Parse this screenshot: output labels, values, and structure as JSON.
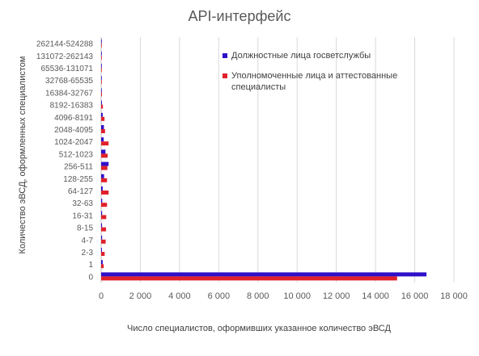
{
  "chart_data": {
    "type": "bar",
    "orientation": "horizontal",
    "title": "API-интерфейс",
    "xlabel": "Число специалистов, оформивших указанное количество эВСД",
    "ylabel": "Количество эВСД, оформленных специалистом",
    "xlim": [
      0,
      18000
    ],
    "x_ticks": [
      "0",
      "2 000",
      "4 000",
      "6 000",
      "8 000",
      "10 000",
      "12 000",
      "14 000",
      "16 000",
      "18 000"
    ],
    "x_tick_values": [
      0,
      2000,
      4000,
      6000,
      8000,
      10000,
      12000,
      14000,
      16000,
      18000
    ],
    "grid": "vertical",
    "legend_position": "right",
    "categories": [
      "0",
      "1",
      "2-3",
      "4-7",
      "8-15",
      "16-31",
      "32-63",
      "64-127",
      "128-255",
      "256-511",
      "512-1023",
      "1024-2047",
      "2048-4095",
      "4096-8191",
      "8192-16383",
      "16384-32767",
      "32768-65535",
      "65536-131071",
      "131072-262143",
      "262144-524288"
    ],
    "series": [
      {
        "name": "Должностные лица госветслужбы",
        "color": "#2f10c8",
        "values": [
          16600,
          80,
          40,
          50,
          45,
          50,
          55,
          80,
          150,
          380,
          220,
          130,
          140,
          80,
          40,
          20,
          20,
          15,
          15,
          30
        ]
      },
      {
        "name": "Уполномоченные лица и аттестованные специалисты",
        "color": "#e0212b",
        "values": [
          15100,
          130,
          180,
          230,
          250,
          260,
          300,
          380,
          300,
          320,
          330,
          380,
          200,
          170,
          90,
          40,
          30,
          25,
          20,
          15
        ]
      }
    ]
  }
}
